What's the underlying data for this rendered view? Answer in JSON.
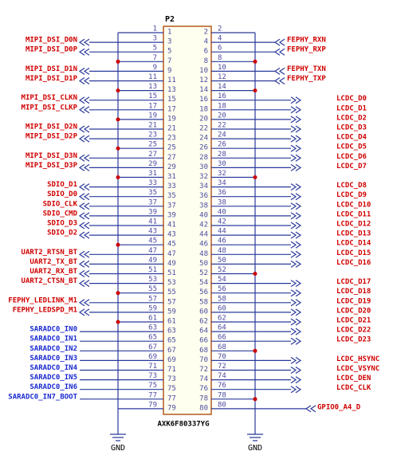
{
  "connector": {
    "ref": "P2",
    "part": "AXK6F80337YG"
  },
  "ground_labels": [
    "GND",
    "GND"
  ],
  "left": [
    {
      "pin": 1
    },
    {
      "pin": 3,
      "net": "MIPI_DSI_D0N"
    },
    {
      "pin": 5,
      "net": "MIPI_DSI_D0P"
    },
    {
      "pin": 7
    },
    {
      "pin": 9,
      "net": "MIPI_DSI_D1N"
    },
    {
      "pin": 11,
      "net": "MIPI_DSI_D1P"
    },
    {
      "pin": 13
    },
    {
      "pin": 15,
      "net": "MIPI_DSI_CLKN"
    },
    {
      "pin": 17,
      "net": "MIPI_DSI_CLKP"
    },
    {
      "pin": 19
    },
    {
      "pin": 21,
      "net": "MIPI_DSI_D2N"
    },
    {
      "pin": 23,
      "net": "MIPI_DSI_D2P"
    },
    {
      "pin": 25
    },
    {
      "pin": 27,
      "net": "MIPI_DSI_D3N"
    },
    {
      "pin": 29,
      "net": "MIPI_DSI_D3P"
    },
    {
      "pin": 31
    },
    {
      "pin": 33,
      "net": "SDIO_D1"
    },
    {
      "pin": 35,
      "net": "SDIO_D0"
    },
    {
      "pin": 37,
      "net": "SDIO_CLK"
    },
    {
      "pin": 39,
      "net": "SDIO_CMD"
    },
    {
      "pin": 41,
      "net": "SDIO_D3"
    },
    {
      "pin": 43,
      "net": "SDIO_D2"
    },
    {
      "pin": 45
    },
    {
      "pin": 47,
      "net": "UART2_RTSN_BT"
    },
    {
      "pin": 49,
      "net": "UART2_TX_BT"
    },
    {
      "pin": 51,
      "net": "UART2_RX_BT"
    },
    {
      "pin": 53,
      "net": "UART2_CTSN_BT"
    },
    {
      "pin": 55
    },
    {
      "pin": 57,
      "net": "FEPHY_LEDLINK_M1"
    },
    {
      "pin": 59,
      "net": "FEPHY_LEDSPD_M1"
    },
    {
      "pin": 61
    },
    {
      "pin": 63,
      "net": "SARADC0_IN0"
    },
    {
      "pin": 65,
      "net": "SARADC0_IN1"
    },
    {
      "pin": 67,
      "net": "SARADC0_IN2"
    },
    {
      "pin": 69,
      "net": "SARADC0_IN3"
    },
    {
      "pin": 71,
      "net": "SARADC0_IN4"
    },
    {
      "pin": 73,
      "net": "SARADC0_IN5"
    },
    {
      "pin": 75,
      "net": "SARADC0_IN6"
    },
    {
      "pin": 77,
      "net": "SARADC0_IN7_BOOT"
    },
    {
      "pin": 79
    }
  ],
  "right": [
    {
      "pin": 2
    },
    {
      "pin": 4,
      "net": "FEPHY_RXN"
    },
    {
      "pin": 6,
      "net": "FEPHY_RXP"
    },
    {
      "pin": 8
    },
    {
      "pin": 10,
      "net": "FEPHY_TXN"
    },
    {
      "pin": 12,
      "net": "FEPHY_TXP"
    },
    {
      "pin": 14
    },
    {
      "pin": 16,
      "net": "LCDC_D0"
    },
    {
      "pin": 18,
      "net": "LCDC_D1"
    },
    {
      "pin": 20,
      "net": "LCDC_D2"
    },
    {
      "pin": 22,
      "net": "LCDC_D3"
    },
    {
      "pin": 24,
      "net": "LCDC_D4"
    },
    {
      "pin": 26,
      "net": "LCDC_D5"
    },
    {
      "pin": 28,
      "net": "LCDC_D6"
    },
    {
      "pin": 30,
      "net": "LCDC_D7"
    },
    {
      "pin": 32
    },
    {
      "pin": 34,
      "net": "LCDC_D8"
    },
    {
      "pin": 36,
      "net": "LCDC_D9"
    },
    {
      "pin": 38,
      "net": "LCDC_D10"
    },
    {
      "pin": 40,
      "net": "LCDC_D11"
    },
    {
      "pin": 42,
      "net": "LCDC_D12"
    },
    {
      "pin": 44,
      "net": "LCDC_D13"
    },
    {
      "pin": 46,
      "net": "LCDC_D14"
    },
    {
      "pin": 48,
      "net": "LCDC_D15"
    },
    {
      "pin": 50,
      "net": "LCDC_D16"
    },
    {
      "pin": 52
    },
    {
      "pin": 54,
      "net": "LCDC_D17"
    },
    {
      "pin": 56,
      "net": "LCDC_D18"
    },
    {
      "pin": 58,
      "net": "LCDC_D19"
    },
    {
      "pin": 60,
      "net": "LCDC_D20"
    },
    {
      "pin": 62,
      "net": "LCDC_D21"
    },
    {
      "pin": 64,
      "net": "LCDC_D22"
    },
    {
      "pin": 66,
      "net": "LCDC_D23"
    },
    {
      "pin": 68
    },
    {
      "pin": 70,
      "net": "LCDC_HSYNC"
    },
    {
      "pin": 72,
      "net": "LCDC_VSYNC"
    },
    {
      "pin": 74,
      "net": "LCDC_DEN"
    },
    {
      "pin": 76,
      "net": "LCDC_CLK"
    },
    {
      "pin": 78
    },
    {
      "pin": 80,
      "net": "GPIO0_A4_D"
    }
  ]
}
